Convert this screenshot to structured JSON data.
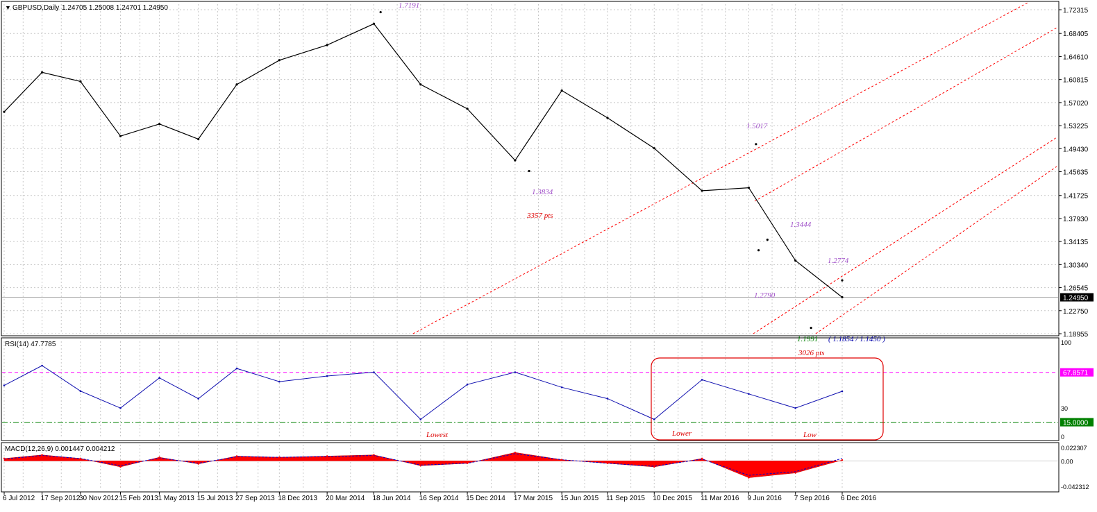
{
  "header": {
    "symbol": "GBPUSD,Daily",
    "ohlc": "1.24705 1.25008 1.24701 1.24950",
    "menu_glyph": "▼"
  },
  "colors": {
    "price_line": "#000000",
    "grid": "#c8c8c8",
    "channel": "#ff0000",
    "annotation_purple": "#a050c8",
    "annotation_red": "#dd0000",
    "annotation_green": "#008000",
    "annotation_blue": "#0000aa",
    "rsi_line": "#1010b0",
    "rsi_upper": "#ff00ff",
    "rsi_lower": "#008000",
    "macd_hist": "#ff0000",
    "macd_signal": "#0000cc"
  },
  "price_axis": {
    "labels": [
      "1.72315",
      "1.68405",
      "1.64610",
      "1.60815",
      "1.57020",
      "1.53225",
      "1.49430",
      "1.45635",
      "1.41725",
      "1.37930",
      "1.34135",
      "1.30340",
      "1.26545",
      "1.22750",
      "1.18955"
    ],
    "current": "1.24950",
    "ymin": 1.18955,
    "ymax": 1.72315
  },
  "time_axis": {
    "labels": [
      "6 Jul 2012",
      "17 Sep 2012",
      "30 Nov 2012",
      "15 Feb 2013",
      "1 May 2013",
      "15 Jul 2013",
      "27 Sep 2013",
      "18 Dec 2013",
      "20 Mar 2014",
      "18 Jun 2014",
      "16 Sep 2014",
      "15 Dec 2014",
      "17 Mar 2015",
      "15 Jun 2015",
      "11 Sep 2015",
      "10 Dec 2015",
      "11 Mar 2016",
      "9 Jun 2016",
      "7 Sep 2016",
      "6 Dec 2016"
    ]
  },
  "chart_data": [
    {
      "type": "line",
      "series": [
        {
          "name": "GBPUSD,Daily",
          "x": [
            "6 Jul 2012",
            "17 Sep 2012",
            "30 Nov 2012",
            "15 Feb 2013",
            "1 May 2013",
            "15 Jul 2013",
            "27 Sep 2013",
            "18 Dec 2013",
            "20 Mar 2014",
            "18 Jun 2014",
            "16 Sep 2014",
            "15 Dec 2014",
            "17 Mar 2015",
            "15 Jun 2015",
            "11 Sep 2015",
            "10 Dec 2015",
            "11 Mar 2016",
            "9 Jun 2016",
            "7 Sep 2016",
            "6 Dec 2016"
          ],
          "values": [
            1.555,
            1.62,
            1.605,
            1.515,
            1.535,
            1.51,
            1.6,
            1.64,
            1.665,
            1.7,
            1.6,
            1.56,
            1.475,
            1.59,
            1.545,
            1.495,
            1.425,
            1.43,
            1.31,
            1.2495
          ]
        }
      ],
      "key_points": [
        {
          "date": "1 Jul 2014",
          "value": 1.7191
        },
        {
          "date": "13 Apr 2015",
          "value": 1.4575
        },
        {
          "date": "23 Jun 2016",
          "value": 1.5017
        },
        {
          "date": "28 Jun 2016",
          "value": 1.327
        },
        {
          "date": "15 Jul 2016",
          "value": 1.3444
        },
        {
          "date": "7 Oct 2016",
          "value": 1.1991
        },
        {
          "date": "6 Dec 2016",
          "value": 1.2774
        }
      ],
      "annotations": {
        "high": "1.7191",
        "low_2015": "1.3834",
        "pts_2015": "3357 pts",
        "brexit_high": "1.5017",
        "post_high": "1.3444",
        "post_low": "1.2790",
        "recent_high": "1.2774",
        "flash_low": "1.1991",
        "flash_range": "( 1.1854 / 1.1450 )",
        "pts_2016": "3026 pts"
      },
      "ylim": [
        1.18955,
        1.72315
      ],
      "grid": true
    },
    {
      "type": "line",
      "title": "RSI(14) 47.7785",
      "series": [
        {
          "name": "RSI(14)",
          "values": [
            54,
            75,
            48,
            30,
            62,
            40,
            72,
            58,
            64,
            68,
            18,
            55,
            68,
            52,
            40,
            18,
            60,
            45,
            30,
            47.78
          ]
        }
      ],
      "levels": {
        "upper": "67.8571",
        "lower": "15.0000"
      },
      "axis_labels": [
        "100",
        "30",
        "0"
      ],
      "annotations": {
        "lowest": "Lowest",
        "lower": "Lower",
        "low": "Low"
      },
      "ylim": [
        0,
        100
      ]
    },
    {
      "type": "area",
      "title": "MACD(12,26,9) 0.001447 0.004212",
      "series": [
        {
          "name": "MACD(12,26,9)",
          "values": [
            0.004,
            0.01,
            0.004,
            -0.01,
            0.006,
            -0.005,
            0.008,
            0.006,
            0.008,
            0.01,
            -0.008,
            -0.004,
            0.014,
            0.002,
            -0.004,
            -0.01,
            0.004,
            -0.028,
            -0.02,
            0.001447
          ]
        },
        {
          "name": "signal",
          "values": [
            0.003,
            0.009,
            0.004,
            -0.008,
            0.005,
            -0.004,
            0.007,
            0.006,
            0.007,
            0.009,
            -0.007,
            -0.004,
            0.012,
            0.002,
            -0.004,
            -0.009,
            0.003,
            -0.024,
            -0.018,
            0.004212
          ]
        }
      ],
      "axis_labels": [
        "0.022307",
        "0.00",
        "-0.042312"
      ],
      "ylim": [
        -0.042312,
        0.022307
      ]
    }
  ]
}
